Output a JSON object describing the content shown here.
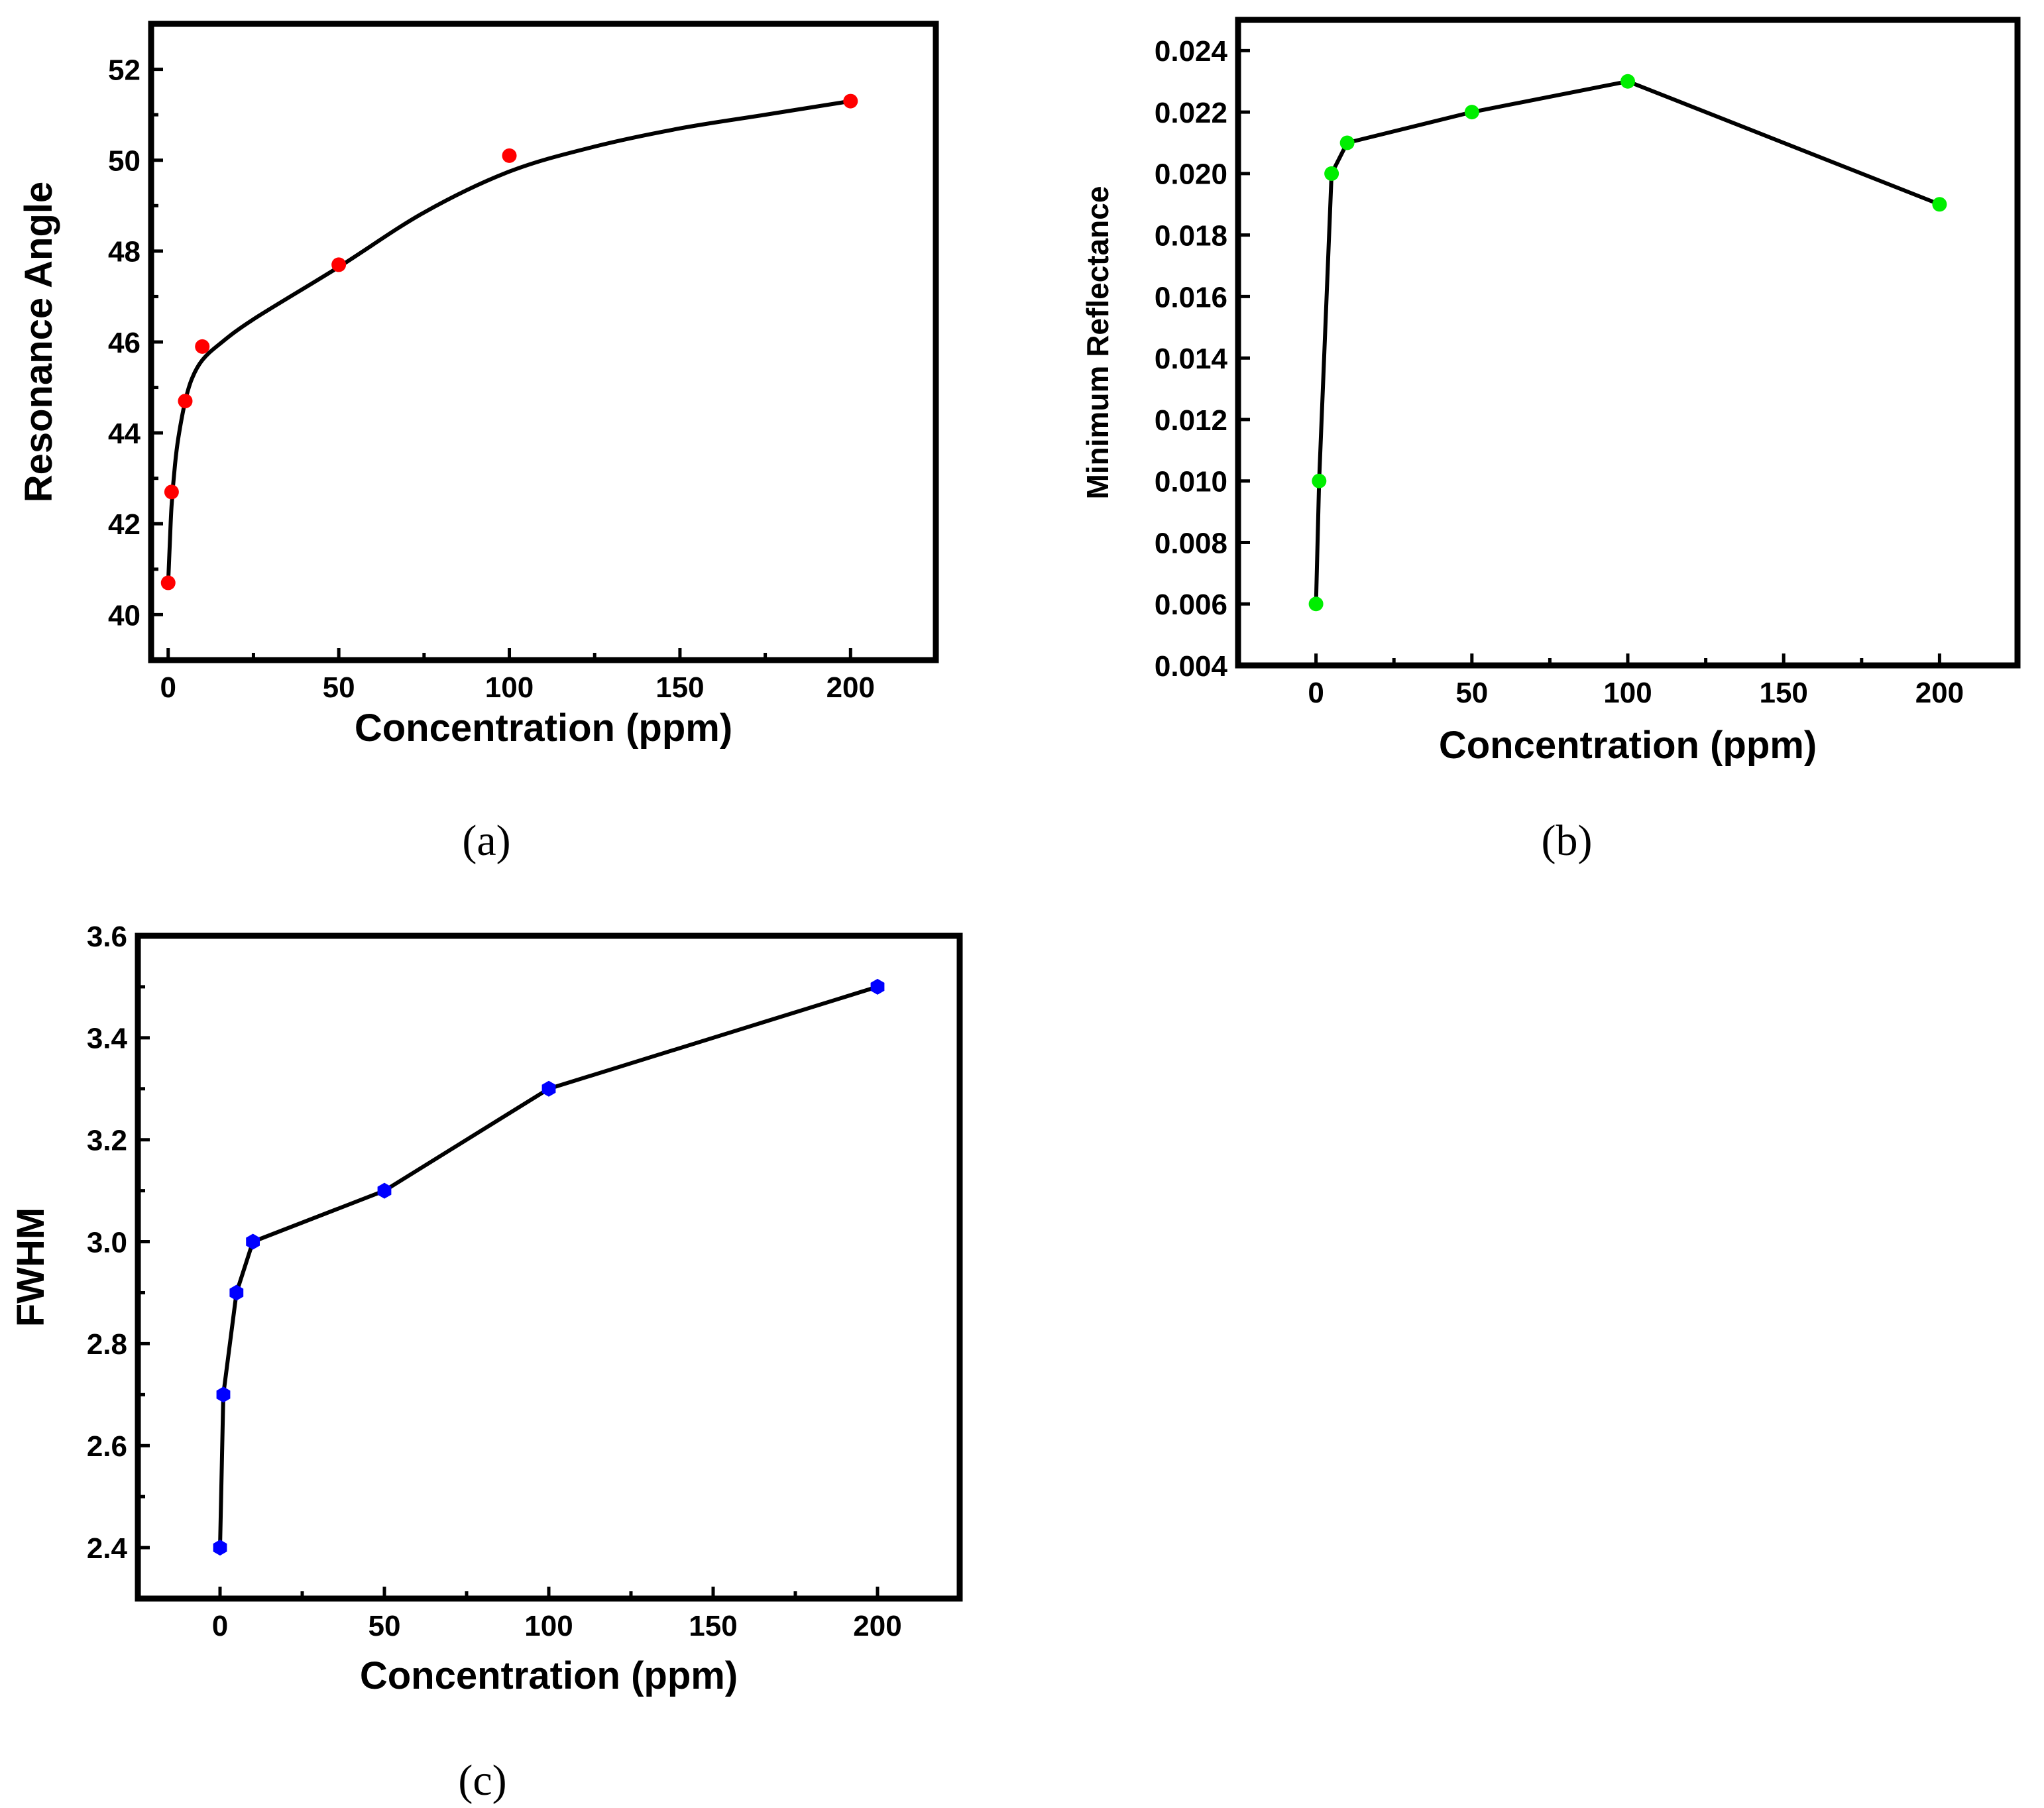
{
  "chart_data": [
    {
      "type": "scatter",
      "panel": "a",
      "caption": "(a)",
      "xlabel": "Concentration (ppm)",
      "ylabel": "Resonance Angle",
      "xlim": [
        -5,
        225
      ],
      "ylim": [
        39,
        53
      ],
      "xticks": [
        0,
        50,
        100,
        150,
        200
      ],
      "yticks": [
        40,
        42,
        44,
        46,
        48,
        50,
        52
      ],
      "marker_color": "#ff0000",
      "marker_shape": "circle",
      "line": "smooth fit",
      "x": [
        0,
        1,
        5,
        10,
        50,
        100,
        200
      ],
      "y": [
        40.7,
        42.7,
        44.7,
        45.9,
        47.7,
        50.1,
        51.3
      ],
      "fit_curve": {
        "x": [
          0,
          0.5,
          1,
          2,
          3,
          5,
          7,
          10,
          15,
          25,
          50,
          75,
          100,
          125,
          150,
          175,
          200
        ],
        "y": [
          40.7,
          41.6,
          42.4,
          43.3,
          43.9,
          44.7,
          45.2,
          45.6,
          45.95,
          46.5,
          47.65,
          48.85,
          49.75,
          50.3,
          50.7,
          51.0,
          51.3
        ]
      }
    },
    {
      "type": "line",
      "panel": "b",
      "caption": "(b)",
      "xlabel": "Concentration (ppm)",
      "ylabel": "Minimum Reflectance",
      "xlim": [
        -25,
        225
      ],
      "ylim": [
        0.004,
        0.025
      ],
      "xticks": [
        0,
        50,
        100,
        150,
        200
      ],
      "yticks": [
        0.004,
        0.006,
        0.008,
        0.01,
        0.012,
        0.014,
        0.016,
        0.018,
        0.02,
        0.022,
        0.024
      ],
      "ytick_labels": [
        "0.004",
        "0.006",
        "0.008",
        "0.010",
        "0.012",
        "0.014",
        "0.016",
        "0.018",
        "0.020",
        "0.022",
        "0.024"
      ],
      "marker_color": "#00ee00",
      "marker_shape": "circle",
      "x": [
        0,
        1,
        5,
        10,
        50,
        100,
        200
      ],
      "y": [
        0.006,
        0.01,
        0.02,
        0.021,
        0.022,
        0.023,
        0.019
      ]
    },
    {
      "type": "line",
      "panel": "c",
      "caption": "(c)",
      "xlabel": "Concentration (ppm)",
      "ylabel": "FWHM",
      "xlim": [
        -25,
        225
      ],
      "ylim": [
        2.3,
        3.6
      ],
      "xticks": [
        0,
        50,
        100,
        150,
        200
      ],
      "yticks": [
        2.4,
        2.6,
        2.8,
        3.0,
        3.2,
        3.4,
        3.6
      ],
      "ytick_labels": [
        "2.4",
        "2.6",
        "2.8",
        "3.0",
        "3.2",
        "3.4",
        "3.6"
      ],
      "marker_color": "#0000ff",
      "marker_shape": "hexagon",
      "x": [
        0,
        1,
        5,
        10,
        50,
        100,
        200
      ],
      "y": [
        2.4,
        2.7,
        2.9,
        3.0,
        3.1,
        3.3,
        3.5
      ]
    }
  ]
}
